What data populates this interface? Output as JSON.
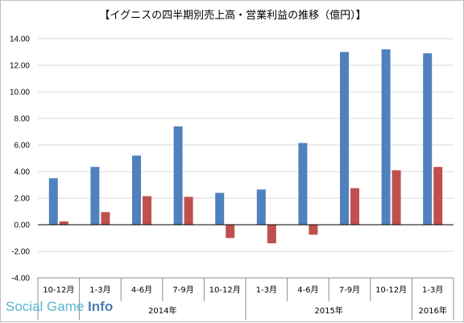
{
  "chart_data": {
    "type": "bar",
    "title": "【イグニスの四半期別売上高・営業利益の推移（億円）】",
    "xlabel": "",
    "ylabel": "",
    "ylim": [
      -4,
      14
    ],
    "yticks": [
      "14.00",
      "12.00",
      "10.00",
      "8.00",
      "6.00",
      "4.00",
      "2.00",
      "0.00",
      "-2.00",
      "-4.00"
    ],
    "categories": [
      "10-12月",
      "1-3月",
      "4-6月",
      "7-9月",
      "10-12月",
      "1-3月",
      "4-6月",
      "7-9月",
      "10-12月",
      "1-3月"
    ],
    "groups": [
      {
        "label": "",
        "count": 1
      },
      {
        "label": "2014年",
        "count": 4
      },
      {
        "label": "2015年",
        "count": 4
      },
      {
        "label": "2016年",
        "count": 1
      }
    ],
    "series": [
      {
        "values": [
          3.5,
          4.35,
          5.2,
          7.4,
          2.4,
          2.65,
          6.15,
          13.0,
          13.2,
          12.9
        ]
      },
      {
        "values": [
          0.25,
          0.95,
          2.15,
          2.1,
          -1.0,
          -1.4,
          -0.75,
          2.75,
          4.1,
          4.35
        ]
      }
    ],
    "colors": [
      "#4f81bd",
      "#c0504d"
    ],
    "grid": true,
    "legend": "none"
  },
  "watermark": {
    "part1": "Social Game ",
    "part2": "Info"
  }
}
